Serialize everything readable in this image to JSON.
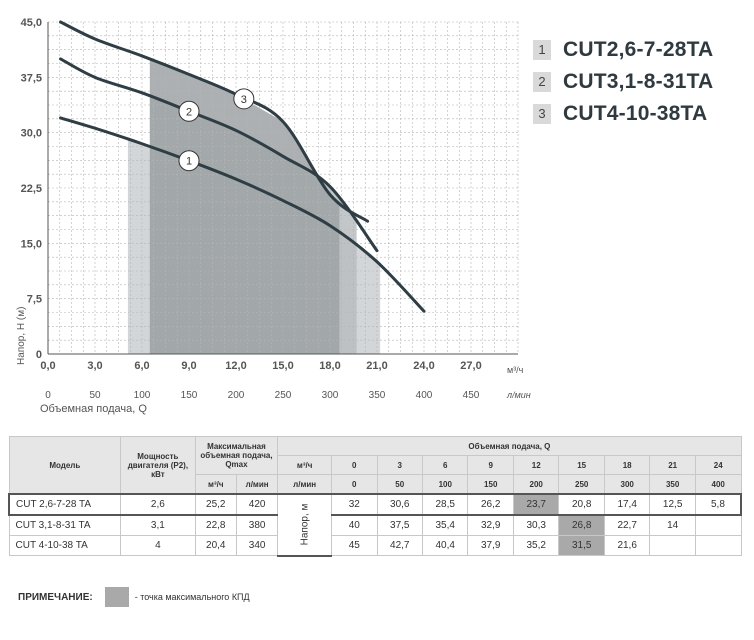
{
  "chart_data": {
    "type": "line",
    "xlabel": "Объемная подача, Q",
    "ylabel": "Напор, Н (м)",
    "x_unit_primary": "м³/ч",
    "x_unit_secondary": "л/мин",
    "xlim": [
      0,
      30
    ],
    "ylim": [
      0,
      45
    ],
    "x_ticks": [
      "0,0",
      "3,0",
      "6,0",
      "9,0",
      "12,0",
      "15,0",
      "18,0",
      "21,0",
      "24,0",
      "27,0"
    ],
    "x_ticks_secondary": [
      "0",
      "50",
      "100",
      "150",
      "200",
      "250",
      "300",
      "350",
      "400",
      "450"
    ],
    "y_ticks": [
      "0",
      "7,5",
      "15,0",
      "22,5",
      "30,0",
      "37,5",
      "45,0"
    ],
    "grid": true,
    "series": [
      {
        "name": "CUT2,6-7-28TA",
        "label": "1",
        "x": [
          0,
          3,
          6,
          9,
          12,
          15,
          18,
          21,
          24
        ],
        "y": [
          32,
          30.6,
          28.5,
          26.2,
          23.7,
          20.8,
          17.4,
          12.5,
          5.8
        ],
        "efficiency_range": [
          5.1,
          21.2
        ]
      },
      {
        "name": "CUT3,1-8-31TA",
        "label": "2",
        "x": [
          0,
          3,
          6,
          9,
          12,
          15,
          18,
          21
        ],
        "y": [
          40,
          37.5,
          35.4,
          32.9,
          30.3,
          26.8,
          22.7,
          14
        ],
        "efficiency_range": [
          6.5,
          19.7
        ]
      },
      {
        "name": "CUT4-10-38TA",
        "label": "3",
        "x": [
          0,
          3,
          6,
          9,
          12,
          15,
          18,
          20.4
        ],
        "y": [
          45,
          42.7,
          40.4,
          37.9,
          35.2,
          31.5,
          21.6,
          18
        ],
        "efficiency_range": [
          6.5,
          18.6
        ]
      }
    ]
  },
  "legend": [
    {
      "num": "1",
      "name": "CUT2,6-7-28TA"
    },
    {
      "num": "2",
      "name": "CUT3,1-8-31TA"
    },
    {
      "num": "3",
      "name": "CUT4-10-38TA"
    }
  ],
  "table": {
    "h_model": "Модель",
    "h_power": "Мощность двигателя (Р2), кВт",
    "h_qmax": "Максимальная объемная подача, Qmax",
    "h_flow": "Объемная подача, Q",
    "u_m3": "м³/ч",
    "u_lmin": "л/мин",
    "flow_m3": [
      "0",
      "3",
      "6",
      "9",
      "12",
      "15",
      "18",
      "21",
      "24"
    ],
    "flow_lmin": [
      "0",
      "50",
      "100",
      "150",
      "200",
      "250",
      "300",
      "350",
      "400"
    ],
    "head_label": "Напор, м",
    "rows": [
      {
        "model": "CUT 2,6-7-28 TA",
        "power": "2,6",
        "qmax_m3": "25,2",
        "qmax_lmin": "420",
        "head": [
          "32",
          "30,6",
          "28,5",
          "26,2",
          "23,7",
          "20,8",
          "17,4",
          "12,5",
          "5,8"
        ],
        "hl": 4
      },
      {
        "model": "CUT 3,1-8-31 TA",
        "power": "3,1",
        "qmax_m3": "22,8",
        "qmax_lmin": "380",
        "head": [
          "40",
          "37,5",
          "35,4",
          "32,9",
          "30,3",
          "26,8",
          "22,7",
          "14",
          ""
        ],
        "hl": 5
      },
      {
        "model": "CUT 4-10-38 TA",
        "power": "4",
        "qmax_m3": "20,4",
        "qmax_lmin": "340",
        "head": [
          "45",
          "42,7",
          "40,4",
          "37,9",
          "35,2",
          "31,5",
          "21,6",
          "",
          ""
        ],
        "hl": 5
      }
    ]
  },
  "note": {
    "label": "ПРИМЕЧАНИЕ:",
    "text": "- точка максимального КПД"
  },
  "colors": {
    "curve": "#2f3d44",
    "fill_light": "#d3d6d8",
    "fill_mid": "#b9bdbf",
    "fill_dark": "#9ea2a4",
    "highlight": "#a9a9a9"
  }
}
